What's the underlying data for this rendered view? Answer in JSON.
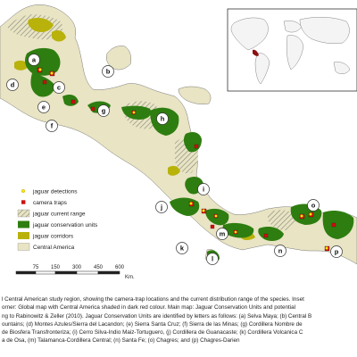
{
  "map": {
    "unit_letters": [
      "a",
      "b",
      "c",
      "d",
      "e",
      "f",
      "g",
      "h",
      "i",
      "j",
      "k",
      "l",
      "m",
      "n",
      "o",
      "p"
    ],
    "legend": [
      {
        "label": "jaguar detections",
        "symbol": "yellow-dot"
      },
      {
        "label": "camera traps",
        "symbol": "red-square"
      },
      {
        "label": "jaguar current range",
        "symbol": "hatch"
      },
      {
        "label": "jaguar conservation units",
        "symbol": "green-fill"
      },
      {
        "label": "jaguar corridors",
        "symbol": "olive-fill"
      },
      {
        "label": "Central America",
        "symbol": "beige-fill"
      }
    ],
    "scale": {
      "ticks": [
        "75",
        "150",
        "300",
        "450",
        "600"
      ],
      "unit": "Km."
    },
    "colors": {
      "land": "#e8e4c4",
      "jcu": "#2e7d10",
      "corridor": "#b8b20a",
      "trap": "#cc1010",
      "detection": "#ffe600",
      "inset_highlight": "#8b1010"
    }
  },
  "caption": {
    "lines": [
      "l Central American study region, showing the camera-trap locations and the current distribution range of the species. Inset",
      "orner: Global map with Central America shaded in dark red colour. Main map: Jaguar Conservation Units and potential",
      "ng to Rabinowitz & Zeller (2010). Jaguar Conservation Units are identified by letters as follows: (a) Selva Maya; (b) Central B",
      "ountains; (d) Montes Azules/Sierra del Lacandon; (e) Sierra Santa Cruz; (f) Sierra de las Minas; (g) Cordillera Nombre de",
      "de Biosfera Transfronteriza; (i) Cerro Silva-Indio Maiz-Tortuguero, (j) Cordillera de Guanacaste; (k) Cordillera Volcanica C",
      "a de Osa, (m) Talamanca-Cordillera Central; (n) Santa Fe; (o) Chagres; and (p) Chagres-Darien"
    ]
  }
}
